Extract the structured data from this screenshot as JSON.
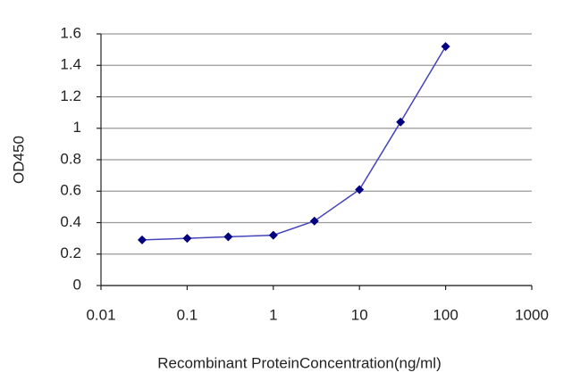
{
  "chart_data": {
    "type": "line",
    "x_label": "Recombinant ProteinConcentration(ng/ml)",
    "y_label": "OD450",
    "x": [
      0.03,
      0.1,
      0.3,
      1,
      3,
      10,
      30,
      100
    ],
    "values": [
      0.29,
      0.3,
      0.31,
      0.32,
      0.41,
      0.61,
      1.04,
      1.52
    ],
    "line_color": "#4444bb",
    "marker_color": "#000080",
    "xscale": "log",
    "xlim": [
      0.01,
      1000
    ],
    "xticks": [
      0.01,
      0.1,
      1,
      10,
      100,
      1000
    ],
    "ylim": [
      0,
      1.6
    ],
    "yticks": [
      0,
      0.2,
      0.4,
      0.6,
      0.8,
      1,
      1.2,
      1.4,
      1.6
    ],
    "grid": true
  }
}
